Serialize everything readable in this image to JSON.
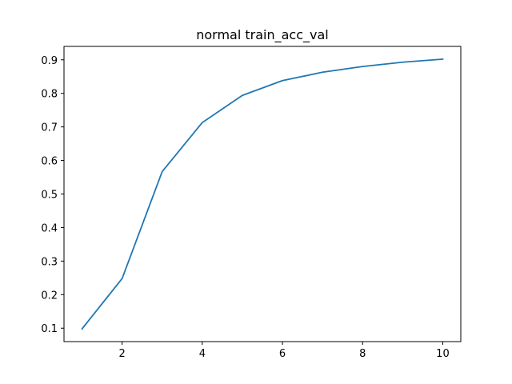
{
  "chart_data": {
    "type": "line",
    "title": "normal train_acc_val",
    "xlabel": "",
    "ylabel": "",
    "xlim": [
      0.55,
      10.45
    ],
    "ylim": [
      0.06,
      0.94
    ],
    "x_ticks": [
      2,
      4,
      6,
      8,
      10
    ],
    "y_ticks": [
      0.1,
      0.2,
      0.3,
      0.4,
      0.5,
      0.6,
      0.7,
      0.8,
      0.9
    ],
    "grid": false,
    "series": [
      {
        "color": "#1f77b4",
        "x": [
          1,
          2,
          3,
          4,
          5,
          6,
          7,
          8,
          9,
          10
        ],
        "y": [
          0.098,
          0.248,
          0.567,
          0.713,
          0.794,
          0.838,
          0.863,
          0.88,
          0.893,
          0.902
        ]
      }
    ]
  }
}
